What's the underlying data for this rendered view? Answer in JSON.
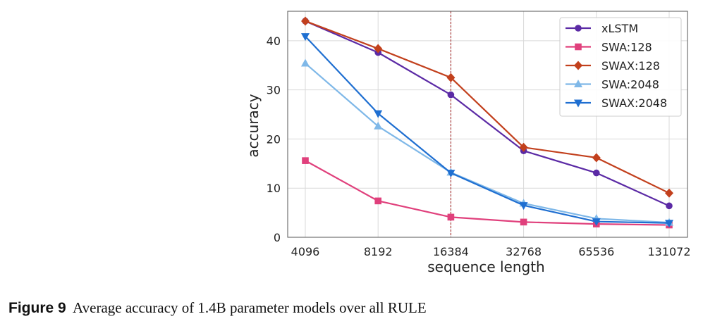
{
  "chart_data": {
    "type": "line",
    "title": "",
    "xlabel": "sequence length",
    "ylabel": "accuracy",
    "categories": [
      "4096",
      "8192",
      "16384",
      "32768",
      "65536",
      "131072"
    ],
    "ylim": [
      0,
      46
    ],
    "yticks": [
      0,
      10,
      20,
      30,
      40
    ],
    "grid": true,
    "vline_at": "16384",
    "legend_position": "top-right",
    "series": [
      {
        "name": "xLSTM",
        "color": "#5b2aa5",
        "marker": "circle",
        "values": [
          44.0,
          37.6,
          29.0,
          17.6,
          13.1,
          6.4
        ]
      },
      {
        "name": "SWA:128",
        "color": "#e0407c",
        "marker": "square",
        "values": [
          15.6,
          7.4,
          4.1,
          3.1,
          2.7,
          2.5
        ]
      },
      {
        "name": "SWAX:128",
        "color": "#c2401d",
        "marker": "diamond",
        "values": [
          44.0,
          38.4,
          32.5,
          18.3,
          16.2,
          9.0
        ]
      },
      {
        "name": "SWA:2048",
        "color": "#7fb8e8",
        "marker": "triangle-up",
        "values": [
          35.4,
          22.6,
          13.2,
          6.9,
          3.8,
          3.0
        ]
      },
      {
        "name": "SWAX:2048",
        "color": "#1f6fd1",
        "marker": "triangle-down",
        "values": [
          40.9,
          25.2,
          13.1,
          6.5,
          3.2,
          2.9
        ]
      }
    ]
  },
  "caption": {
    "label": "Figure 9",
    "text": "Average accuracy of 1.4B parameter models over all RULE"
  }
}
